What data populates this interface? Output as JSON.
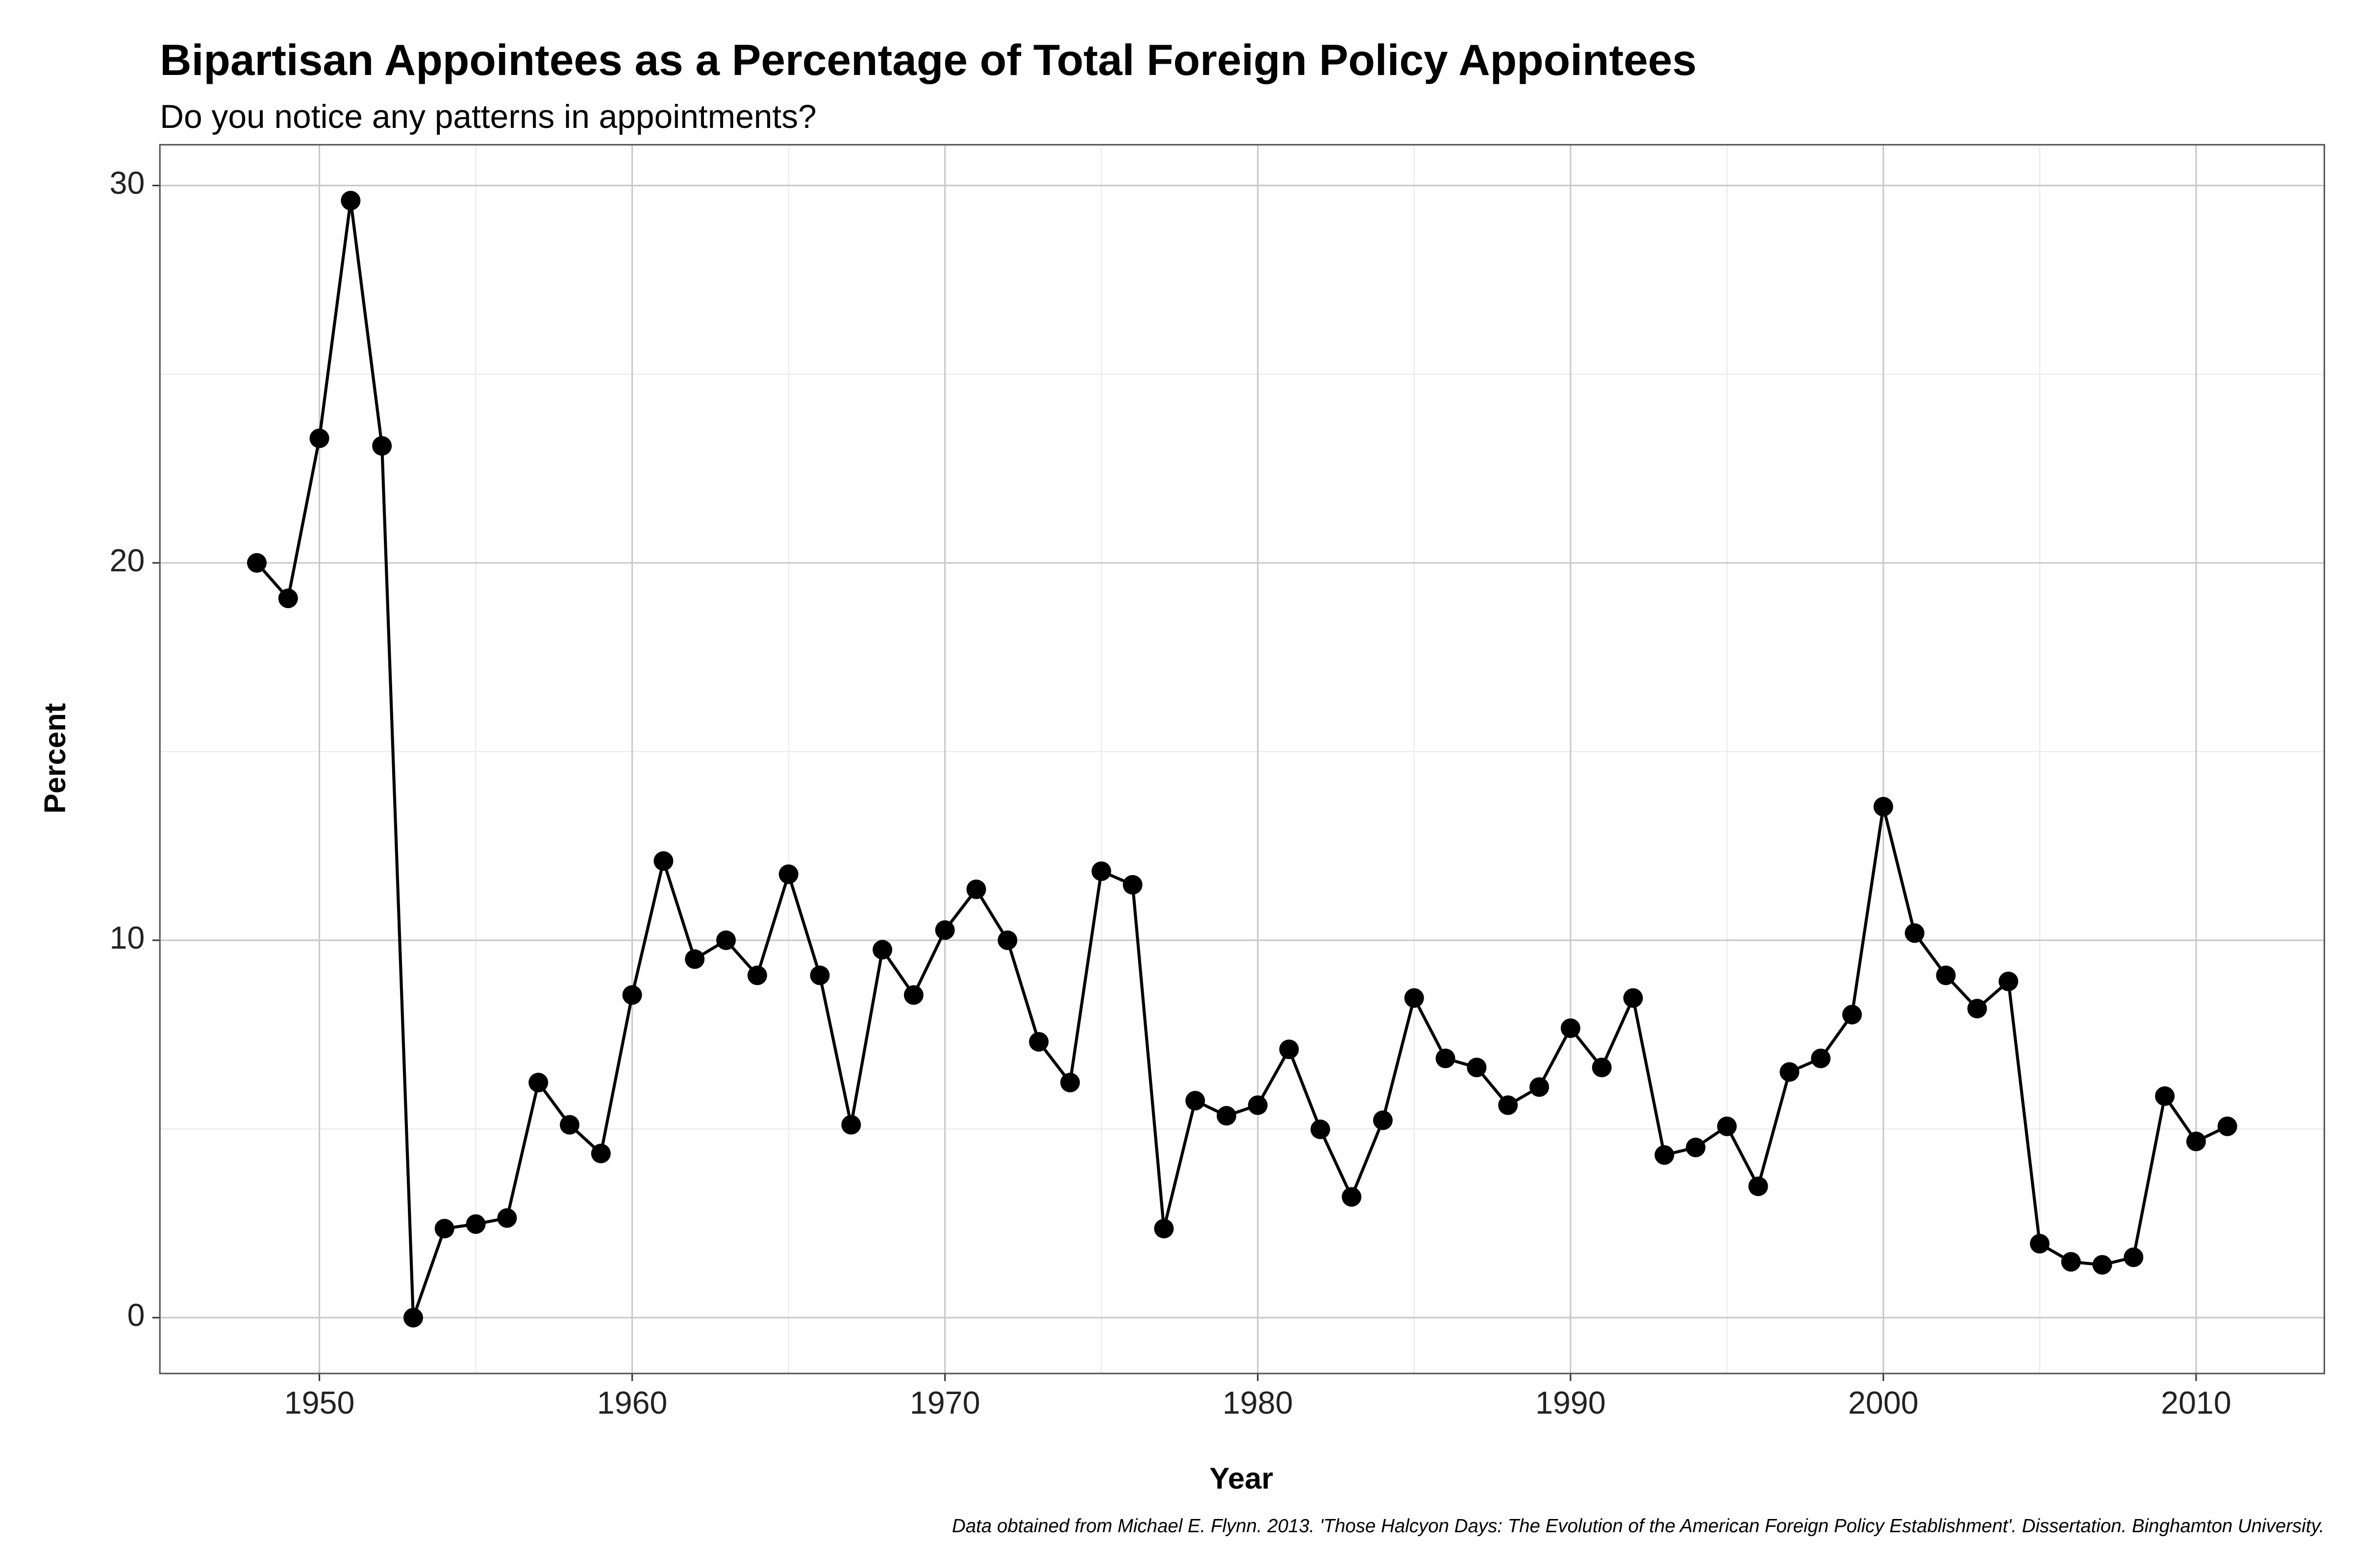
{
  "chart_data": {
    "type": "line",
    "title": "Bipartisan Appointees as a Percentage of Total Foreign Policy Appointees",
    "subtitle": "Do you notice any patterns in appointments?",
    "x_label": "Year",
    "y_label": "Percent",
    "caption": "Data obtained from Michael E. Flynn. 2013. 'Those Halcyon Days: The Evolution of the American Foreign Policy Establishment'. Dissertation. Binghamton University.",
    "x": [
      1948,
      1949,
      1950,
      1951,
      1952,
      1953,
      1954,
      1955,
      1956,
      1957,
      1958,
      1959,
      1960,
      1961,
      1962,
      1963,
      1964,
      1965,
      1966,
      1967,
      1968,
      1969,
      1970,
      1971,
      1972,
      1973,
      1974,
      1975,
      1976,
      1977,
      1978,
      1979,
      1980,
      1981,
      1982,
      1983,
      1984,
      1985,
      1986,
      1987,
      1988,
      1989,
      1990,
      1991,
      1992,
      1993,
      1994,
      1995,
      1996,
      1997,
      1998,
      1999,
      2000,
      2001,
      2002,
      2003,
      2004,
      2005,
      2006,
      2007,
      2008,
      2009,
      2010,
      2011
    ],
    "series": [
      {
        "name": "Percent",
        "color": "#000000",
        "values": [
          20.0,
          19.06,
          23.3,
          29.6,
          23.1,
          0,
          2.36,
          2.48,
          2.64,
          6.23,
          5.11,
          4.35,
          8.55,
          12.1,
          9.5,
          10.0,
          9.07,
          11.75,
          9.07,
          5.11,
          9.75,
          8.55,
          10.27,
          11.35,
          10.0,
          7.31,
          6.23,
          11.83,
          11.47,
          2.36,
          5.75,
          5.35,
          5.63,
          7.11,
          4.99,
          3.2,
          5.23,
          8.47,
          6.87,
          6.63,
          5.63,
          6.11,
          7.67,
          6.63,
          8.47,
          4.31,
          4.51,
          5.07,
          3.48,
          6.51,
          6.87,
          8.03,
          13.54,
          10.19,
          9.07,
          8.19,
          8.91,
          1.96,
          1.48,
          1.4,
          1.6,
          5.87,
          4.67,
          5.07
        ]
      }
    ],
    "xlim": [
      1944.9,
      2014.1
    ],
    "ylim": [
      -1.48,
      31.08
    ],
    "xticks": [
      1950,
      1960,
      1970,
      1980,
      1990,
      2000,
      2010
    ],
    "yticks": [
      0,
      10,
      20,
      30
    ],
    "grid": true,
    "minor_grid": true
  }
}
